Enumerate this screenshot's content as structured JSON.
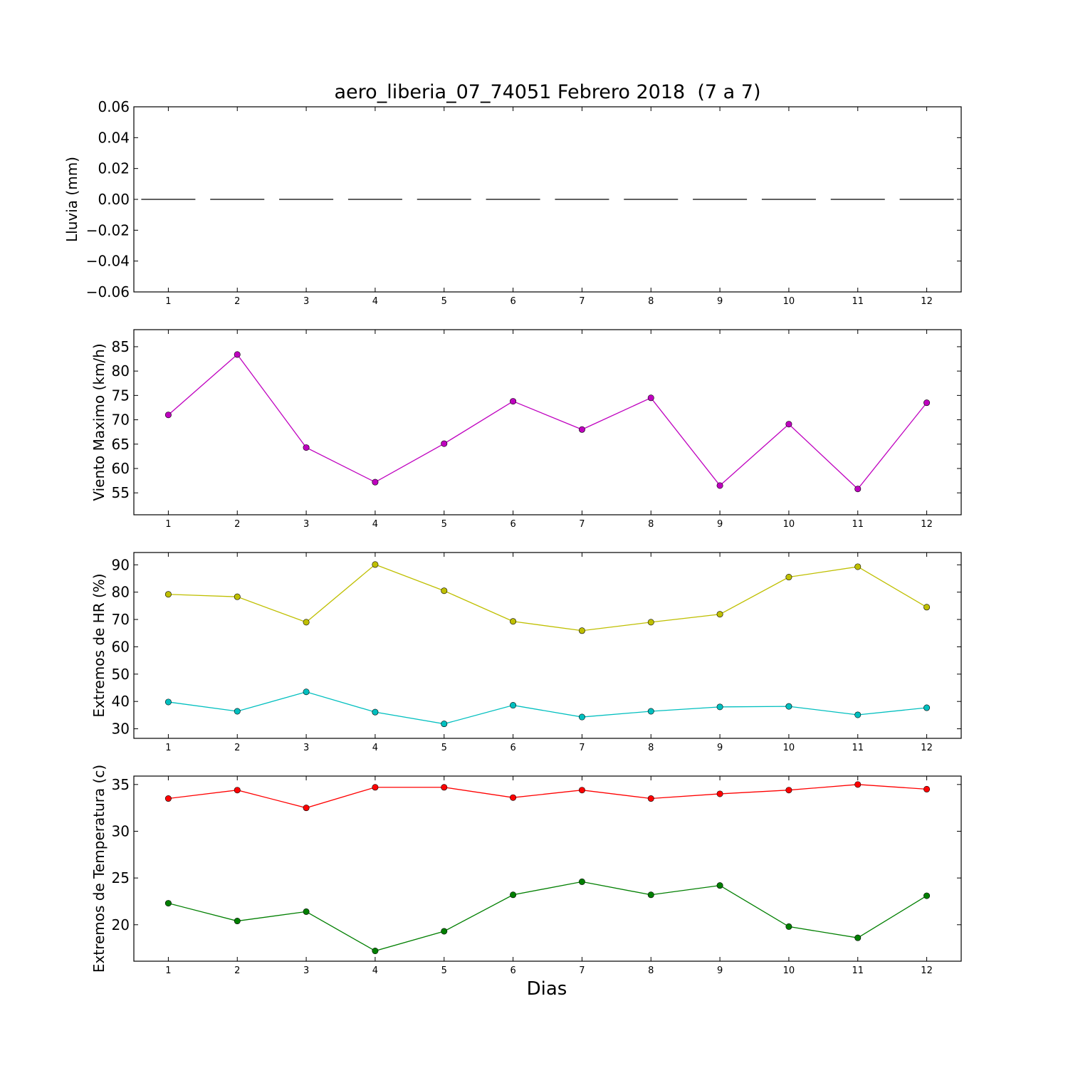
{
  "title": "aero_liberia_07_74051 Febrero 2018  (7 a 7)",
  "xlabel": "Dias",
  "chart_data": [
    {
      "type": "line",
      "ylabel": "Lluvia (mm)",
      "ylim": [
        -0.06,
        0.06
      ],
      "yticks": [
        0.06,
        0.04,
        0.02,
        0.0,
        -0.02,
        -0.04,
        -0.06
      ],
      "ytick_labels": [
        "0.06",
        "0.04",
        "0.02",
        "0.00",
        "−0.02",
        "−0.04",
        "−0.06"
      ],
      "xlim": [
        0.5,
        12.5
      ],
      "x": [
        1,
        2,
        3,
        4,
        5,
        6,
        7,
        8,
        9,
        10,
        11,
        12
      ],
      "xtick_labels": [
        "1",
        "2",
        "3",
        "4",
        "5",
        "6",
        "7",
        "8",
        "9",
        "10",
        "11",
        "12"
      ],
      "series": [
        {
          "values": [
            0,
            0,
            0,
            0,
            0,
            0,
            0,
            0,
            0,
            0,
            0,
            0
          ],
          "color": "#000000",
          "marker": "none",
          "style": "dashes-per-day"
        }
      ]
    },
    {
      "type": "line",
      "ylabel": "Viento Maximo (km/h)",
      "ylim": [
        50.5,
        88.5
      ],
      "yticks": [
        85,
        80,
        75,
        70,
        65,
        60,
        55
      ],
      "ytick_labels": [
        "85",
        "80",
        "75",
        "70",
        "65",
        "60",
        "55"
      ],
      "xlim": [
        0.5,
        12.5
      ],
      "x": [
        1,
        2,
        3,
        4,
        5,
        6,
        7,
        8,
        9,
        10,
        11,
        12
      ],
      "xtick_labels": [
        "1",
        "2",
        "3",
        "4",
        "5",
        "6",
        "7",
        "8",
        "9",
        "10",
        "11",
        "12"
      ],
      "series": [
        {
          "values": [
            71.0,
            83.4,
            64.3,
            57.2,
            65.1,
            73.8,
            68.0,
            74.5,
            56.5,
            69.1,
            55.8,
            73.5
          ],
          "color": "#bf00bf",
          "marker": "circle"
        }
      ]
    },
    {
      "type": "line",
      "ylabel": "Extremos de HR (%)",
      "ylim": [
        26.5,
        94.5
      ],
      "yticks": [
        90,
        80,
        70,
        60,
        50,
        40,
        30
      ],
      "ytick_labels": [
        "90",
        "80",
        "70",
        "60",
        "50",
        "40",
        "30"
      ],
      "xlim": [
        0.5,
        12.5
      ],
      "x": [
        1,
        2,
        3,
        4,
        5,
        6,
        7,
        8,
        9,
        10,
        11,
        12
      ],
      "xtick_labels": [
        "1",
        "2",
        "3",
        "4",
        "5",
        "6",
        "7",
        "8",
        "9",
        "10",
        "11",
        "12"
      ],
      "series": [
        {
          "values": [
            79.2,
            78.3,
            69.0,
            90.1,
            80.5,
            69.3,
            65.9,
            69.0,
            71.9,
            85.5,
            89.3,
            74.5
          ],
          "color": "#bfbf00",
          "marker": "circle"
        },
        {
          "values": [
            39.8,
            36.4,
            43.5,
            36.1,
            31.8,
            38.6,
            34.3,
            36.4,
            38.0,
            38.2,
            35.1,
            37.7
          ],
          "color": "#00bfbf",
          "marker": "circle"
        }
      ]
    },
    {
      "type": "line",
      "ylabel": "Extremos de Temperatura (c)",
      "ylim": [
        16.1,
        35.9
      ],
      "yticks": [
        35,
        30,
        25,
        20
      ],
      "ytick_labels": [
        "35",
        "30",
        "25",
        "20"
      ],
      "xlim": [
        0.5,
        12.5
      ],
      "x": [
        1,
        2,
        3,
        4,
        5,
        6,
        7,
        8,
        9,
        10,
        11,
        12
      ],
      "xtick_labels": [
        "1",
        "2",
        "3",
        "4",
        "5",
        "6",
        "7",
        "8",
        "9",
        "10",
        "11",
        "12"
      ],
      "series": [
        {
          "values": [
            33.5,
            34.4,
            32.5,
            34.7,
            34.7,
            33.6,
            34.4,
            33.5,
            34.0,
            34.4,
            35.0,
            34.5
          ],
          "color": "#ff0000",
          "marker": "circle"
        },
        {
          "values": [
            22.3,
            20.4,
            21.4,
            17.2,
            19.3,
            23.2,
            24.6,
            23.2,
            24.2,
            19.8,
            18.6,
            23.1
          ],
          "color": "#007f00",
          "marker": "circle"
        }
      ]
    }
  ]
}
